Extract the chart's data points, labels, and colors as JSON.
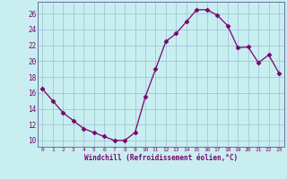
{
  "x": [
    0,
    1,
    2,
    3,
    4,
    5,
    6,
    7,
    8,
    9,
    10,
    11,
    12,
    13,
    14,
    15,
    16,
    17,
    18,
    19,
    20,
    21,
    22,
    23
  ],
  "y": [
    16.5,
    15.0,
    13.5,
    12.5,
    11.5,
    11.0,
    10.5,
    10.0,
    10.0,
    11.0,
    15.5,
    19.0,
    22.5,
    23.5,
    25.0,
    26.5,
    26.5,
    25.8,
    24.5,
    21.7,
    21.8,
    19.8,
    20.8,
    18.5
  ],
  "line_color": "#7B0070",
  "marker": "D",
  "marker_size": 2.5,
  "bg_color": "#c8eef0",
  "grid_color": "#a0c8d8",
  "xlabel": "Windchill (Refroidissement éolien,°C)",
  "ylabel_ticks": [
    10,
    12,
    14,
    16,
    18,
    20,
    22,
    24,
    26
  ],
  "xlim": [
    -0.5,
    23.5
  ],
  "ylim": [
    9.2,
    27.5
  ],
  "font_color": "#7B0070",
  "font_name": "monospace"
}
